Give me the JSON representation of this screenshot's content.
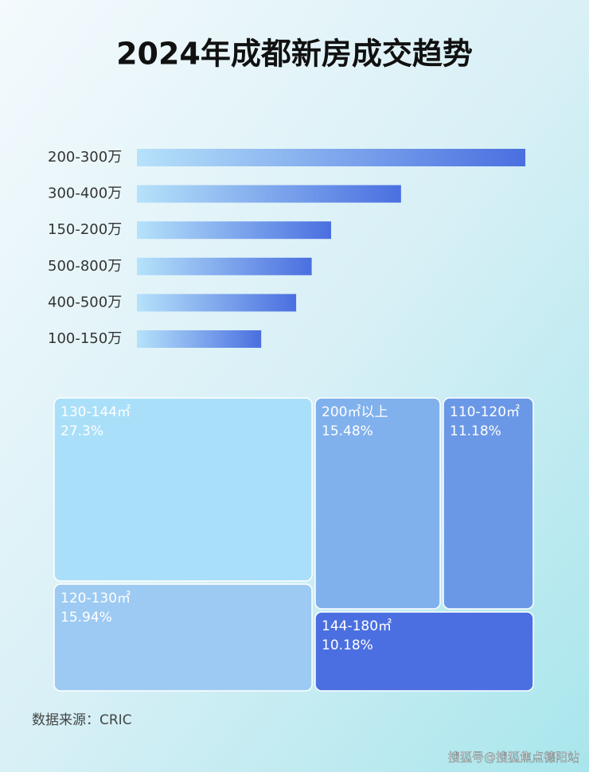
{
  "chart_data": [
    {
      "type": "bar",
      "orientation": "horizontal",
      "title": "2024年成都新房成交趋势",
      "categories": [
        "200-300万",
        "300-400万",
        "150-200万",
        "500-800万",
        "400-500万",
        "100-150万"
      ],
      "values": [
        100,
        68,
        50,
        45,
        41,
        32
      ],
      "color_start": "#b6e2fa",
      "color": "#4a6fe0"
    },
    {
      "type": "treemap",
      "categories": [
        "130-144㎡",
        "200㎡以上",
        "110-120㎡",
        "120-130㎡",
        "144-180㎡"
      ],
      "values": [
        27.3,
        15.48,
        11.18,
        15.94,
        10.18
      ],
      "value_labels": [
        "27.3%",
        "15.48%",
        "11.18%",
        "15.94%",
        "10.18%"
      ],
      "colors": [
        "#aadff9",
        "#80b1ec",
        "#6b98e6",
        "#9dcaf2",
        "#4b6fe0"
      ],
      "source": "数据来源：CRIC"
    }
  ],
  "watermark": "搜狐号@搜狐焦点德阳站"
}
